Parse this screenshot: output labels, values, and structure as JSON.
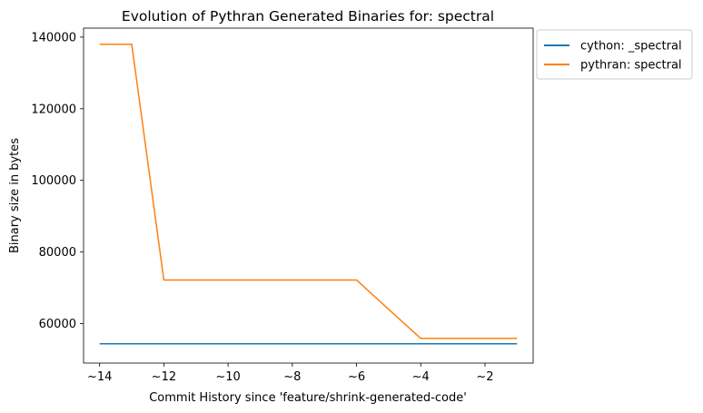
{
  "chart_data": {
    "type": "line",
    "title": "Evolution of Pythran Generated Binaries for: spectral",
    "xlabel": "Commit History since 'feature/shrink-generated-code'",
    "ylabel": "Binary size in bytes",
    "xlim": [
      -14.5,
      -0.5
    ],
    "ylim": [
      49000,
      142500
    ],
    "xticks": [
      -14,
      -12,
      -10,
      -8,
      -6,
      -4,
      -2
    ],
    "xtick_labels": [
      "~14",
      "~12",
      "~10",
      "~8",
      "~6",
      "~4",
      "~2"
    ],
    "yticks": [
      60000,
      80000,
      100000,
      120000,
      140000
    ],
    "ytick_labels": [
      "60000",
      "80000",
      "100000",
      "120000",
      "140000"
    ],
    "grid": false,
    "legend_position": "outside-top-right",
    "x": [
      -14,
      -13,
      -12,
      -11,
      -10,
      -9,
      -8,
      -7,
      -6,
      -5,
      -4,
      -3,
      -2,
      -1
    ],
    "series": [
      {
        "name": "cython: _spectral",
        "color": "#1f77b4",
        "values": [
          54400,
          54400,
          54400,
          54400,
          54400,
          54400,
          54400,
          54400,
          54400,
          54400,
          54400,
          54400,
          54400,
          54400
        ]
      },
      {
        "name": "pythran: spectral",
        "color": "#ff7f0e",
        "values": [
          138000,
          138000,
          72200,
          72200,
          72200,
          72200,
          72200,
          72200,
          72200,
          64000,
          55900,
          55900,
          55900,
          55900
        ]
      }
    ]
  }
}
